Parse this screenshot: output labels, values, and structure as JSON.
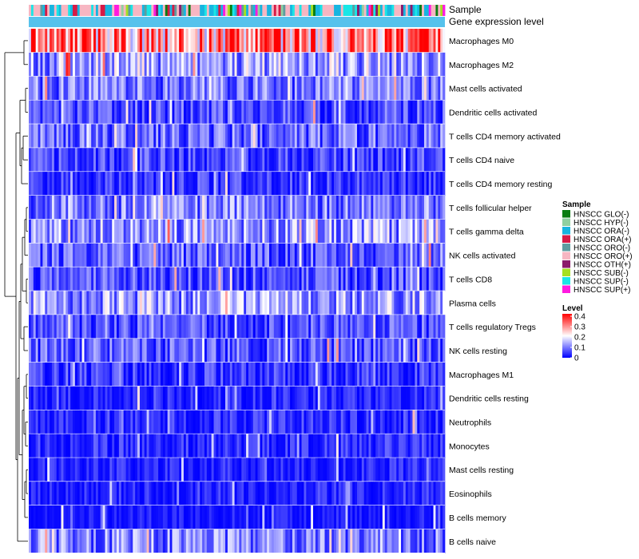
{
  "chart_data": {
    "type": "heatmap",
    "title": "",
    "column_annotations": [
      {
        "name": "Sample"
      },
      {
        "name": "Gene expression level"
      }
    ],
    "row_labels": [
      "Macrophages M0",
      "Macrophages M2",
      "Mast cells activated",
      "Dendritic cells activated",
      "T cells CD4 memory activated",
      "T cells CD4 naive",
      "T cells CD4 memory resting",
      "T cells follicular helper",
      "T cells gamma delta",
      "NK cells activated",
      "T cells CD8",
      "Plasma cells",
      "T cells regulatory  Tregs",
      "NK cells resting",
      "Macrophages M1",
      "Dendritic cells resting",
      "Neutrophils",
      "Monocytes",
      "Mast cells resting",
      "Eosinophils",
      "B cells memory",
      "B cells naive"
    ],
    "row_mean_levels": [
      0.3,
      0.13,
      0.09,
      0.06,
      0.08,
      0.05,
      0.04,
      0.1,
      0.12,
      0.07,
      0.06,
      0.12,
      0.06,
      0.07,
      0.04,
      0.02,
      0.03,
      0.03,
      0.02,
      0.02,
      0.01,
      0.1
    ],
    "n_samples": 180,
    "sample_groups": [
      {
        "name": "HNSCC GLO(-)",
        "color": "#0a7d12"
      },
      {
        "name": "HNSCC HYP(-)",
        "color": "#8fd0a0"
      },
      {
        "name": "HNSCC ORA(-)",
        "color": "#17b5e0"
      },
      {
        "name": "HNSCC ORA(+)",
        "color": "#d61a46"
      },
      {
        "name": "HNSCC ORO(-)",
        "color": "#5e9ca0"
      },
      {
        "name": "HNSCC ORO(+)",
        "color": "#f7b6c2"
      },
      {
        "name": "HNSCC OTH(+)",
        "color": "#8b1a6b"
      },
      {
        "name": "HNSCC SUB(-)",
        "color": "#a6e022"
      },
      {
        "name": "HNSCC SUP(-)",
        "color": "#19e6e6"
      },
      {
        "name": "HNSCC SUP(+)",
        "color": "#ff1ae0"
      }
    ],
    "expression_track_color": "#56c2ec",
    "legend_sample_title": "Sample",
    "legend_level_title": "Level",
    "level_scale": {
      "min": 0,
      "max": 0.4,
      "ticks": [
        "0.4",
        "0.3",
        "0.2",
        "0.1",
        "0"
      ],
      "colors": [
        "#0000ff",
        "#ffffff",
        "#ff0000"
      ]
    }
  }
}
